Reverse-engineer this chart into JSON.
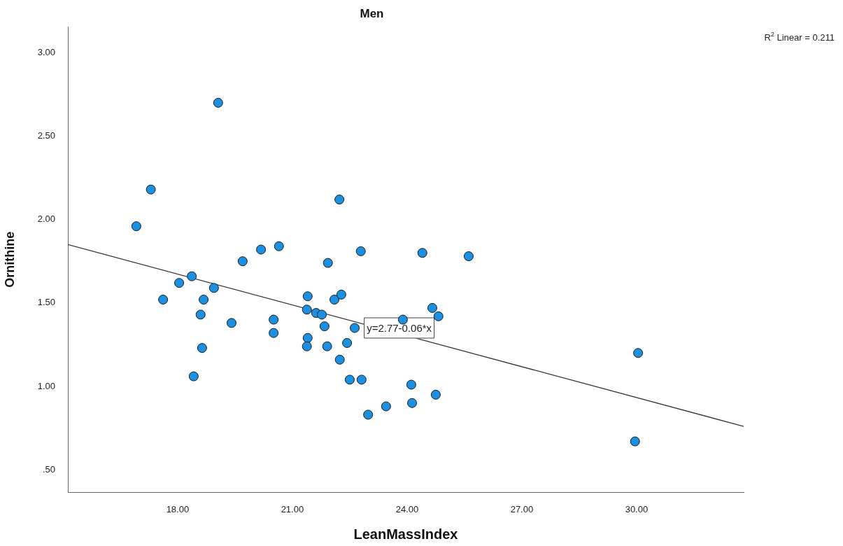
{
  "chart_data": {
    "type": "scatter",
    "title": "Men",
    "xlabel": "LeanMassIndex",
    "ylabel": "Ornithine",
    "xlim": [
      15.13,
      32.8
    ],
    "ylim": [
      0.366,
      3.155
    ],
    "xticks": [
      {
        "value": 18,
        "label": "18.00"
      },
      {
        "value": 21,
        "label": "21.00"
      },
      {
        "value": 24,
        "label": "24.00"
      },
      {
        "value": 27,
        "label": "27.00"
      },
      {
        "value": 30,
        "label": "30.00"
      }
    ],
    "yticks": [
      {
        "value": 0.5,
        "label": ".50"
      },
      {
        "value": 1,
        "label": "1.00"
      },
      {
        "value": 1.5,
        "label": "1.50"
      },
      {
        "value": 2,
        "label": "2.00"
      },
      {
        "value": 2.5,
        "label": "2.50"
      },
      {
        "value": 3,
        "label": "3.00"
      }
    ],
    "marker": "circle",
    "series": [
      {
        "color": "#1b8fe0",
        "x": [
          16.92,
          17.3,
          19.06,
          19.7,
          20.18,
          20.65,
          18.37,
          18.04,
          18.95,
          17.62,
          18.68,
          18.6,
          19.41,
          20.51,
          20.51,
          18.64,
          18.42,
          22.23,
          22.79,
          24.4,
          25.61,
          21.93,
          21.4,
          22.1,
          22.28,
          21.38,
          21.62,
          21.77,
          21.84,
          22.63,
          21.4,
          21.38,
          21.91,
          22.43,
          22.24,
          22.5,
          22.81,
          24.11,
          24.75,
          23.45,
          24.13,
          22.98,
          24.66,
          24.82,
          23.89,
          30.04,
          29.96
        ],
        "values": [
          1.96,
          2.18,
          2.7,
          1.75,
          1.82,
          1.84,
          1.66,
          1.62,
          1.59,
          1.52,
          1.52,
          1.43,
          1.38,
          1.4,
          1.32,
          1.23,
          1.06,
          2.12,
          1.81,
          1.8,
          1.78,
          1.74,
          1.54,
          1.52,
          1.55,
          1.46,
          1.44,
          1.43,
          1.36,
          1.35,
          1.29,
          1.24,
          1.24,
          1.26,
          1.16,
          1.04,
          1.04,
          1.01,
          0.95,
          0.88,
          0.9,
          0.83,
          1.47,
          1.42,
          1.4,
          1.2,
          0.67
        ]
      },
      {
        "type": "line",
        "color": "#333333",
        "marker": "none",
        "line_style": "solid",
        "x": [
          15.13,
          32.8
        ],
        "values": [
          1.85,
          0.76
        ]
      }
    ],
    "annotations": [
      "R$^{2}$ Linear = 0.211",
      {
        "text": "y=2.77-0.06*x",
        "x": 22.87,
        "y": 1.35
      }
    ]
  }
}
